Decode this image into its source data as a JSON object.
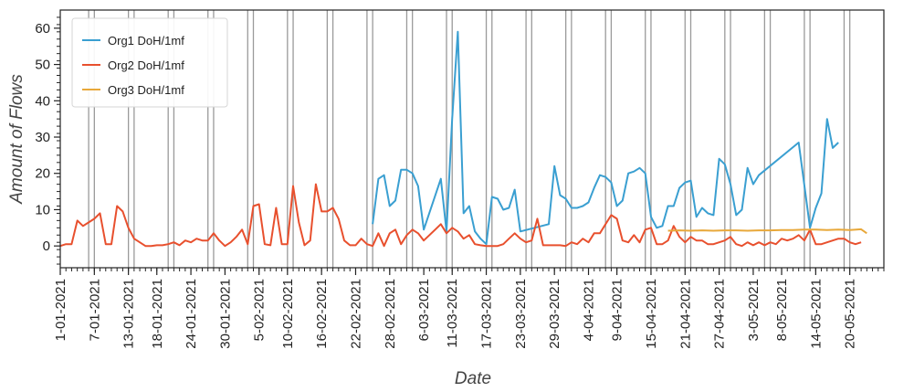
{
  "chart_data": {
    "type": "line",
    "title": "",
    "xlabel": "Date",
    "ylabel": "Amount of Flows",
    "xlim": [
      "2021-01-01",
      "2021-05-26"
    ],
    "ylim": [
      -6,
      65
    ],
    "y_ticks": [
      0,
      10,
      20,
      30,
      40,
      50,
      60
    ],
    "x_tick_labels": [
      "1-01-2021",
      "7-01-2021",
      "13-01-2021",
      "18-01-2021",
      "24-01-2021",
      "30-01-2021",
      "5-02-2021",
      "10-02-2021",
      "16-02-2021",
      "22-02-2021",
      "28-02-2021",
      "6-03-2021",
      "11-03-2021",
      "17-03-2021",
      "23-03-2021",
      "29-03-2021",
      "4-04-2021",
      "9-04-2021",
      "15-04-2021",
      "21-04-2021",
      "27-04-2021",
      "3-05-2021",
      "8-05-2021",
      "14-05-2021",
      "20-05-2021"
    ],
    "x_tick_dates": [
      "2021-01-01",
      "2021-01-07",
      "2021-01-13",
      "2021-01-18",
      "2021-01-24",
      "2021-01-30",
      "2021-02-05",
      "2021-02-10",
      "2021-02-16",
      "2021-02-22",
      "2021-02-28",
      "2021-03-06",
      "2021-03-11",
      "2021-03-17",
      "2021-03-23",
      "2021-03-29",
      "2021-04-04",
      "2021-04-09",
      "2021-04-15",
      "2021-04-21",
      "2021-04-27",
      "2021-05-03",
      "2021-05-08",
      "2021-05-14",
      "2021-05-20"
    ],
    "vertical_markers": [
      "2021-01-06",
      "2021-01-07",
      "2021-01-13",
      "2021-01-14",
      "2021-01-20",
      "2021-01-21",
      "2021-01-27",
      "2021-01-28",
      "2021-02-03",
      "2021-02-04",
      "2021-02-10",
      "2021-02-11",
      "2021-02-17",
      "2021-02-18",
      "2021-02-24",
      "2021-02-25",
      "2021-03-03",
      "2021-03-04",
      "2021-03-10",
      "2021-03-11",
      "2021-03-17",
      "2021-03-18",
      "2021-03-24",
      "2021-03-25",
      "2021-03-31",
      "2021-04-01",
      "2021-04-07",
      "2021-04-08",
      "2021-04-14",
      "2021-04-15",
      "2021-04-21",
      "2021-04-22",
      "2021-04-28",
      "2021-04-29",
      "2021-05-05",
      "2021-05-06",
      "2021-05-12",
      "2021-05-13",
      "2021-05-19",
      "2021-05-20"
    ],
    "grid": false,
    "legend_position": "top-left",
    "series": [
      {
        "name": "Org1 DoH/1mf",
        "color": "#3a9fd1",
        "points": [
          [
            "2021-02-25",
            6
          ],
          [
            "2021-02-26",
            18.5
          ],
          [
            "2021-02-27",
            19.5
          ],
          [
            "2021-02-28",
            11
          ],
          [
            "2021-03-01",
            12.5
          ],
          [
            "2021-03-02",
            21
          ],
          [
            "2021-03-03",
            21
          ],
          [
            "2021-03-04",
            20
          ],
          [
            "2021-03-05",
            16.5
          ],
          [
            "2021-03-06",
            4.5
          ],
          [
            "2021-03-09",
            18.5
          ],
          [
            "2021-03-10",
            4
          ],
          [
            "2021-03-11",
            35
          ],
          [
            "2021-03-12",
            59
          ],
          [
            "2021-03-13",
            9
          ],
          [
            "2021-03-14",
            11
          ],
          [
            "2021-03-15",
            4
          ],
          [
            "2021-03-16",
            2
          ],
          [
            "2021-03-17",
            0.5
          ],
          [
            "2021-03-18",
            13.5
          ],
          [
            "2021-03-19",
            13
          ],
          [
            "2021-03-20",
            10
          ],
          [
            "2021-03-21",
            10.5
          ],
          [
            "2021-03-22",
            15.5
          ],
          [
            "2021-03-23",
            4
          ],
          [
            "2021-03-28",
            6
          ],
          [
            "2021-03-29",
            22
          ],
          [
            "2021-03-30",
            14
          ],
          [
            "2021-03-31",
            13
          ],
          [
            "2021-04-01",
            10.5
          ],
          [
            "2021-04-02",
            10.5
          ],
          [
            "2021-04-03",
            11
          ],
          [
            "2021-04-04",
            12
          ],
          [
            "2021-04-05",
            16
          ],
          [
            "2021-04-06",
            19.5
          ],
          [
            "2021-04-07",
            19
          ],
          [
            "2021-04-08",
            17.5
          ],
          [
            "2021-04-09",
            11
          ],
          [
            "2021-04-10",
            12.5
          ],
          [
            "2021-04-11",
            20
          ],
          [
            "2021-04-12",
            20.5
          ],
          [
            "2021-04-13",
            21.5
          ],
          [
            "2021-04-14",
            20
          ],
          [
            "2021-04-15",
            8
          ],
          [
            "2021-04-16",
            5
          ],
          [
            "2021-04-17",
            5.5
          ],
          [
            "2021-04-18",
            11
          ],
          [
            "2021-04-19",
            11
          ],
          [
            "2021-04-20",
            16
          ],
          [
            "2021-04-21",
            17.5
          ],
          [
            "2021-04-22",
            18
          ],
          [
            "2021-04-23",
            8
          ],
          [
            "2021-04-24",
            10.5
          ],
          [
            "2021-04-25",
            9
          ],
          [
            "2021-04-26",
            8.5
          ],
          [
            "2021-04-27",
            24
          ],
          [
            "2021-04-28",
            22.5
          ],
          [
            "2021-04-29",
            17
          ],
          [
            "2021-04-30",
            8.5
          ],
          [
            "2021-05-01",
            10
          ],
          [
            "2021-05-02",
            21.5
          ],
          [
            "2021-05-03",
            17
          ],
          [
            "2021-05-04",
            19.5
          ],
          [
            "2021-05-11",
            28.5
          ],
          [
            "2021-05-13",
            5
          ],
          [
            "2021-05-14",
            10.5
          ],
          [
            "2021-05-15",
            14.5
          ],
          [
            "2021-05-16",
            35
          ],
          [
            "2021-05-17",
            27
          ],
          [
            "2021-05-18",
            28.5
          ]
        ]
      },
      {
        "name": "Org2 DoH/1mf",
        "color": "#e8502e",
        "points": [
          [
            "2021-01-01",
            0
          ],
          [
            "2021-01-02",
            0.5
          ],
          [
            "2021-01-03",
            0.5
          ],
          [
            "2021-01-04",
            7
          ],
          [
            "2021-01-05",
            5.5
          ],
          [
            "2021-01-06",
            6.5
          ],
          [
            "2021-01-07",
            7.5
          ],
          [
            "2021-01-08",
            9
          ],
          [
            "2021-01-09",
            0.5
          ],
          [
            "2021-01-10",
            0.5
          ],
          [
            "2021-01-11",
            11
          ],
          [
            "2021-01-12",
            9.5
          ],
          [
            "2021-01-13",
            5
          ],
          [
            "2021-01-14",
            2
          ],
          [
            "2021-01-15",
            1
          ],
          [
            "2021-01-16",
            0
          ],
          [
            "2021-01-17",
            0
          ],
          [
            "2021-01-18",
            0.2
          ],
          [
            "2021-01-19",
            0.2
          ],
          [
            "2021-01-20",
            0.5
          ],
          [
            "2021-01-21",
            1
          ],
          [
            "2021-01-22",
            0.2
          ],
          [
            "2021-01-23",
            1.5
          ],
          [
            "2021-01-24",
            1
          ],
          [
            "2021-01-25",
            2
          ],
          [
            "2021-01-26",
            1.5
          ],
          [
            "2021-01-27",
            1.5
          ],
          [
            "2021-01-28",
            3.5
          ],
          [
            "2021-01-29",
            1.5
          ],
          [
            "2021-01-30",
            0
          ],
          [
            "2021-01-31",
            1
          ],
          [
            "2021-02-01",
            2.5
          ],
          [
            "2021-02-02",
            4.5
          ],
          [
            "2021-02-03",
            0.5
          ],
          [
            "2021-02-04",
            11
          ],
          [
            "2021-02-05",
            11.5
          ],
          [
            "2021-02-06",
            0.5
          ],
          [
            "2021-02-07",
            0.2
          ],
          [
            "2021-02-08",
            10.5
          ],
          [
            "2021-02-09",
            0.5
          ],
          [
            "2021-02-10",
            0.5
          ],
          [
            "2021-02-11",
            16.5
          ],
          [
            "2021-02-12",
            6.5
          ],
          [
            "2021-02-13",
            0.2
          ],
          [
            "2021-02-14",
            1.5
          ],
          [
            "2021-02-15",
            17
          ],
          [
            "2021-02-16",
            9.5
          ],
          [
            "2021-02-17",
            9.5
          ],
          [
            "2021-02-18",
            10.5
          ],
          [
            "2021-02-19",
            7.5
          ],
          [
            "2021-02-20",
            1.5
          ],
          [
            "2021-02-21",
            0.2
          ],
          [
            "2021-02-22",
            0.2
          ],
          [
            "2021-02-23",
            2
          ],
          [
            "2021-02-24",
            0.5
          ],
          [
            "2021-02-25",
            0
          ],
          [
            "2021-02-26",
            3.5
          ],
          [
            "2021-02-27",
            0
          ],
          [
            "2021-02-28",
            3.5
          ],
          [
            "2021-03-01",
            4.5
          ],
          [
            "2021-03-02",
            0.5
          ],
          [
            "2021-03-03",
            3
          ],
          [
            "2021-03-04",
            4.5
          ],
          [
            "2021-03-05",
            3.5
          ],
          [
            "2021-03-06",
            1.5
          ],
          [
            "2021-03-07",
            3
          ],
          [
            "2021-03-08",
            4.5
          ],
          [
            "2021-03-09",
            6
          ],
          [
            "2021-03-10",
            3.5
          ],
          [
            "2021-03-11",
            5
          ],
          [
            "2021-03-12",
            4
          ],
          [
            "2021-03-13",
            2
          ],
          [
            "2021-03-14",
            3
          ],
          [
            "2021-03-15",
            0.5
          ],
          [
            "2021-03-16",
            0.2
          ],
          [
            "2021-03-17",
            0
          ],
          [
            "2021-03-18",
            0
          ],
          [
            "2021-03-19",
            0
          ],
          [
            "2021-03-20",
            0.5
          ],
          [
            "2021-03-21",
            2
          ],
          [
            "2021-03-22",
            3.5
          ],
          [
            "2021-03-23",
            2
          ],
          [
            "2021-03-24",
            1
          ],
          [
            "2021-03-25",
            1.5
          ],
          [
            "2021-03-26",
            7.5
          ],
          [
            "2021-03-27",
            0.2
          ],
          [
            "2021-03-28",
            0.2
          ],
          [
            "2021-03-29",
            0.2
          ],
          [
            "2021-03-30",
            0.2
          ],
          [
            "2021-03-31",
            0
          ],
          [
            "2021-04-01",
            1
          ],
          [
            "2021-04-02",
            0.5
          ],
          [
            "2021-04-03",
            2
          ],
          [
            "2021-04-04",
            1
          ],
          [
            "2021-04-05",
            3.5
          ],
          [
            "2021-04-06",
            3.5
          ],
          [
            "2021-04-07",
            6
          ],
          [
            "2021-04-08",
            8.5
          ],
          [
            "2021-04-09",
            7.5
          ],
          [
            "2021-04-10",
            1.5
          ],
          [
            "2021-04-11",
            1
          ],
          [
            "2021-04-12",
            3
          ],
          [
            "2021-04-13",
            1
          ],
          [
            "2021-04-14",
            4.5
          ],
          [
            "2021-04-15",
            5
          ],
          [
            "2021-04-16",
            0.5
          ],
          [
            "2021-04-17",
            0.5
          ],
          [
            "2021-04-18",
            1.5
          ],
          [
            "2021-04-19",
            5.5
          ],
          [
            "2021-04-20",
            2.5
          ],
          [
            "2021-04-21",
            1
          ],
          [
            "2021-04-22",
            2.5
          ],
          [
            "2021-04-23",
            1.5
          ],
          [
            "2021-04-24",
            1.5
          ],
          [
            "2021-04-25",
            0.5
          ],
          [
            "2021-04-26",
            0.5
          ],
          [
            "2021-04-27",
            1
          ],
          [
            "2021-04-28",
            1.5
          ],
          [
            "2021-04-29",
            2.5
          ],
          [
            "2021-04-30",
            0.5
          ],
          [
            "2021-05-01",
            0
          ],
          [
            "2021-05-02",
            1
          ],
          [
            "2021-05-03",
            0.2
          ],
          [
            "2021-05-04",
            1
          ],
          [
            "2021-05-05",
            0.2
          ],
          [
            "2021-05-06",
            1
          ],
          [
            "2021-05-07",
            0.5
          ],
          [
            "2021-05-08",
            2
          ],
          [
            "2021-05-09",
            1.5
          ],
          [
            "2021-05-10",
            2
          ],
          [
            "2021-05-11",
            3
          ],
          [
            "2021-05-12",
            1.5
          ],
          [
            "2021-05-13",
            4.5
          ],
          [
            "2021-05-14",
            0.5
          ],
          [
            "2021-05-15",
            0.5
          ],
          [
            "2021-05-16",
            1
          ],
          [
            "2021-05-17",
            1.5
          ],
          [
            "2021-05-18",
            2
          ],
          [
            "2021-05-19",
            2
          ],
          [
            "2021-05-20",
            1
          ],
          [
            "2021-05-21",
            0.5
          ],
          [
            "2021-05-22",
            1
          ]
        ]
      },
      {
        "name": "Org3 DoH/1mf",
        "color": "#e8a83a",
        "points": [
          [
            "2021-04-18",
            4.2
          ],
          [
            "2021-04-20",
            4.3
          ],
          [
            "2021-04-22",
            4.2
          ],
          [
            "2021-04-24",
            4.3
          ],
          [
            "2021-04-26",
            4.2
          ],
          [
            "2021-04-28",
            4.3
          ],
          [
            "2021-04-30",
            4.3
          ],
          [
            "2021-05-02",
            4.2
          ],
          [
            "2021-05-04",
            4.3
          ],
          [
            "2021-05-06",
            4.3
          ],
          [
            "2021-05-08",
            4.4
          ],
          [
            "2021-05-10",
            4.4
          ],
          [
            "2021-05-12",
            4.5
          ],
          [
            "2021-05-14",
            4.5
          ],
          [
            "2021-05-16",
            4.4
          ],
          [
            "2021-05-18",
            4.5
          ],
          [
            "2021-05-20",
            4.4
          ],
          [
            "2021-05-22",
            4.6
          ],
          [
            "2021-05-23",
            3.5
          ]
        ]
      }
    ]
  }
}
